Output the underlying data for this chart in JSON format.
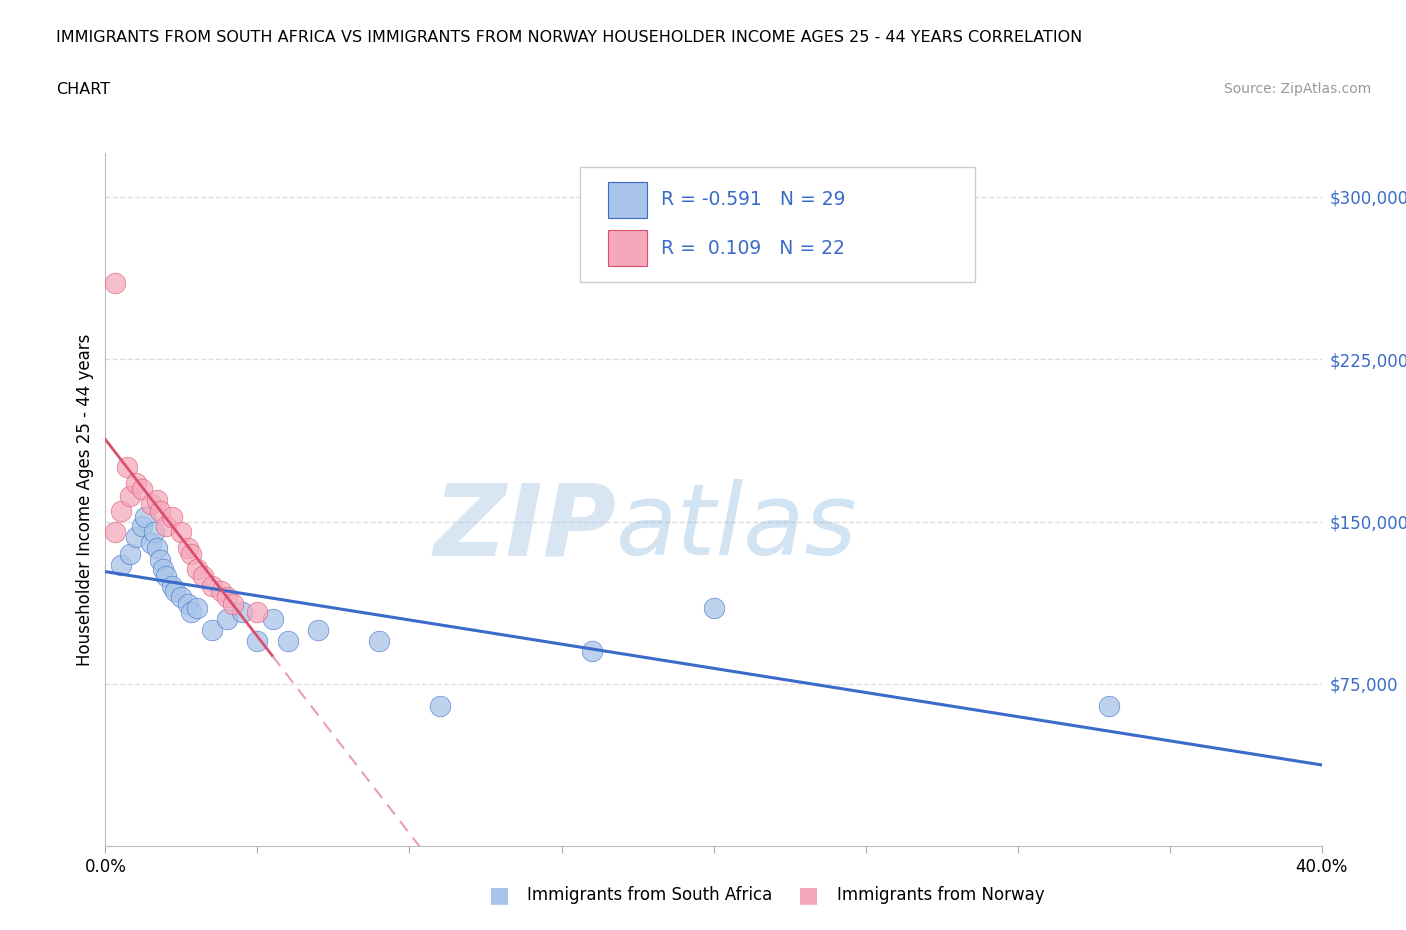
{
  "title_line1": "IMMIGRANTS FROM SOUTH AFRICA VS IMMIGRANTS FROM NORWAY HOUSEHOLDER INCOME AGES 25 - 44 YEARS CORRELATION",
  "title_line2": "CHART",
  "source": "Source: ZipAtlas.com",
  "ylabel": "Householder Income Ages 25 - 44 years",
  "watermark_zip": "ZIP",
  "watermark_atlas": "atlas",
  "legend_label1": "Immigrants from South Africa",
  "legend_label2": "Immigrants from Norway",
  "r1": -0.591,
  "n1": 29,
  "r2": 0.109,
  "n2": 22,
  "color1": "#a8c4e8",
  "color2": "#f5a8bb",
  "line1_color": "#3a6bc9",
  "line2_color": "#d94f6e",
  "line2_dash_color": "#e8a0b0",
  "xlim": [
    0.0,
    0.4
  ],
  "ylim": [
    0,
    320000
  ],
  "yticks": [
    75000,
    150000,
    225000,
    300000
  ],
  "xticks": [
    0.0,
    0.05,
    0.1,
    0.15,
    0.2,
    0.25,
    0.3,
    0.35,
    0.4
  ],
  "background_color": "#ffffff",
  "grid_color": "#dddddd",
  "sa_x": [
    0.005,
    0.008,
    0.01,
    0.012,
    0.013,
    0.015,
    0.016,
    0.017,
    0.018,
    0.019,
    0.02,
    0.022,
    0.023,
    0.025,
    0.027,
    0.028,
    0.03,
    0.035,
    0.04,
    0.045,
    0.05,
    0.055,
    0.06,
    0.07,
    0.09,
    0.11,
    0.16,
    0.2,
    0.33
  ],
  "sa_y": [
    130000,
    135000,
    143000,
    148000,
    152000,
    140000,
    145000,
    138000,
    132000,
    128000,
    125000,
    120000,
    118000,
    115000,
    112000,
    108000,
    110000,
    100000,
    105000,
    108000,
    95000,
    105000,
    95000,
    100000,
    95000,
    65000,
    90000,
    110000,
    65000
  ],
  "no_x": [
    0.003,
    0.005,
    0.007,
    0.008,
    0.01,
    0.012,
    0.015,
    0.017,
    0.018,
    0.02,
    0.022,
    0.025,
    0.027,
    0.028,
    0.03,
    0.032,
    0.035,
    0.038,
    0.04,
    0.042,
    0.05,
    0.003
  ],
  "no_y": [
    145000,
    155000,
    175000,
    162000,
    168000,
    165000,
    158000,
    160000,
    155000,
    148000,
    152000,
    145000,
    138000,
    135000,
    128000,
    125000,
    120000,
    118000,
    115000,
    112000,
    108000,
    260000
  ]
}
